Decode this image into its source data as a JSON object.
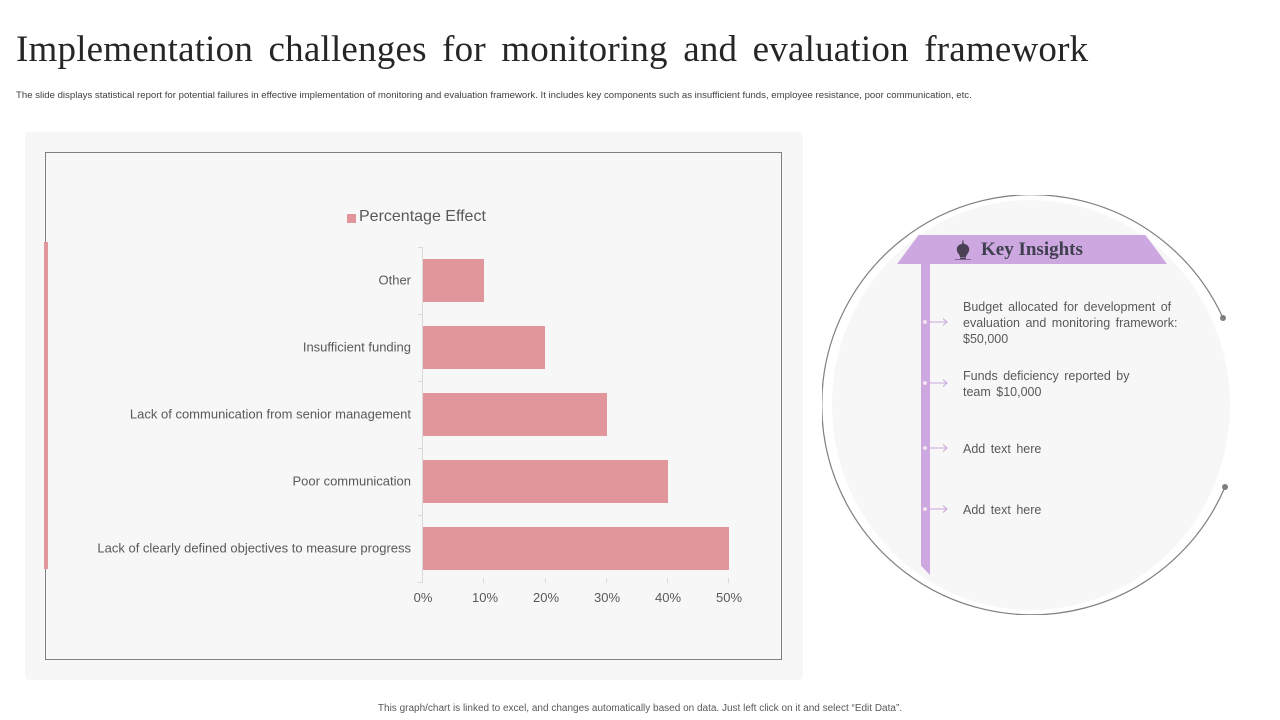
{
  "slide": {
    "title": "Implementation challenges for monitoring and evaluation framework",
    "subtitle": "The slide displays statistical report for potential failures in effective implementation of monitoring and evaluation framework. It includes key components such as insufficient funds, employee resistance, poor communication, etc.",
    "footer": "This graph/chart is linked to excel, and changes automatically based on data. Just left click on it and select “Edit Data”."
  },
  "colors": {
    "bar": "#e0969a",
    "accent_purple": "#cda7df",
    "panel_bg": "#f7f7f7",
    "text": "#595959"
  },
  "chart_data": {
    "type": "bar",
    "orientation": "horizontal",
    "title": "",
    "categories": [
      "Other",
      "Insufficient funding",
      "Lack of communication from senior management",
      "Poor communication",
      "Lack of clearly defined objectives to measure progress"
    ],
    "series": [
      {
        "name": "Percentage Effect",
        "values": [
          10,
          20,
          30,
          40,
          50
        ]
      }
    ],
    "xlabel": "",
    "ylabel": "",
    "xlim": [
      0,
      50
    ],
    "x_ticks": [
      "0%",
      "10%",
      "20%",
      "30%",
      "40%",
      "50%"
    ],
    "grid": false,
    "legend_position": "top"
  },
  "chart": {
    "legend_label": "Percentage Effect",
    "categories": [
      "Other",
      "Insufficient funding",
      "Lack of communication from senior management",
      "Poor communication",
      "Lack of clearly defined objectives to measure progress"
    ],
    "x_ticks": [
      "0%",
      "10%",
      "20%",
      "30%",
      "40%",
      "50%"
    ]
  },
  "insights": {
    "title": "Key Insights",
    "icon": "lightbulb-brain-icon",
    "items": [
      "Budget allocated for development of evaluation and monitoring framework: $50,000",
      "Funds deficiency reported by team $10,000",
      "Add text here",
      "Add text here"
    ]
  }
}
